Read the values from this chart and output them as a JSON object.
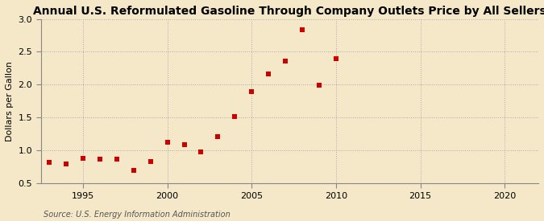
{
  "title": "Annual U.S. Reformulated Gasoline Through Company Outlets Price by All Sellers",
  "ylabel": "Dollars per Gallon",
  "source": "Source: U.S. Energy Information Administration",
  "background_color": "#f5e8c8",
  "years": [
    1993,
    1994,
    1995,
    1996,
    1997,
    1998,
    1999,
    2000,
    2001,
    2002,
    2003,
    2004,
    2005,
    2006,
    2007,
    2008,
    2009,
    2010
  ],
  "values": [
    0.82,
    0.8,
    0.88,
    0.87,
    0.87,
    0.7,
    0.83,
    1.13,
    1.09,
    0.98,
    1.21,
    1.52,
    1.9,
    2.17,
    2.36,
    2.84,
    1.99,
    2.39
  ],
  "marker_color": "#cc0000",
  "marker": "s",
  "marker_size": 16,
  "xlim": [
    1992.5,
    2022
  ],
  "ylim": [
    0.5,
    3.0
  ],
  "yticks": [
    0.5,
    1.0,
    1.5,
    2.0,
    2.5,
    3.0
  ],
  "xticks": [
    1995,
    2000,
    2005,
    2010,
    2015,
    2020
  ],
  "grid_color": "#aaaaaa",
  "grid_linestyle": ":",
  "title_fontsize": 10,
  "label_fontsize": 8,
  "tick_fontsize": 8,
  "source_fontsize": 7
}
